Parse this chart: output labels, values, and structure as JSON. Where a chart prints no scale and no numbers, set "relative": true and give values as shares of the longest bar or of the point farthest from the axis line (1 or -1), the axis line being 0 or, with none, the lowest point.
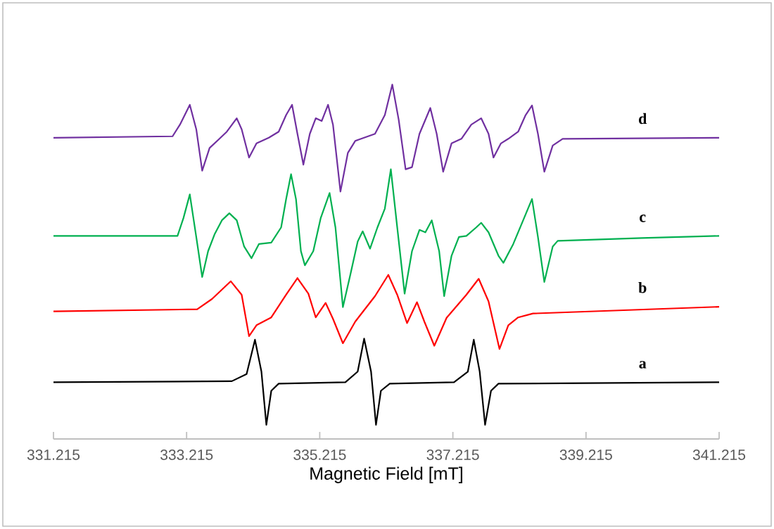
{
  "chart_data": {
    "type": "line",
    "relative": true,
    "xlabel": "Magnetic Field [mT]",
    "xlim": [
      331.215,
      341.215
    ],
    "xticks": [
      331.215,
      333.215,
      335.215,
      337.215,
      339.215,
      341.215
    ],
    "tick_labels": "x",
    "series": [
      {
        "name": "d",
        "color": "#7030a0",
        "x": [
          331.215,
          333.004,
          333.115,
          333.263,
          333.36,
          333.449,
          333.56,
          333.708,
          333.819,
          333.968,
          334.042,
          334.153,
          334.265,
          334.45,
          334.598,
          334.71,
          334.799,
          334.88,
          334.969,
          335.066,
          335.155,
          335.244,
          335.34,
          335.414,
          335.526,
          335.637,
          335.748,
          336.045,
          336.193,
          336.305,
          336.401,
          336.505,
          336.601,
          336.713,
          336.876,
          336.972,
          337.069,
          337.195,
          337.343,
          337.492,
          337.64,
          337.751,
          337.825,
          337.937,
          338.048,
          338.196,
          338.308,
          338.404,
          338.493,
          338.589,
          338.715,
          338.864,
          341.215
        ],
        "values": [
          0.85,
          0.854,
          0.887,
          0.943,
          0.874,
          0.757,
          0.821,
          0.847,
          0.867,
          0.905,
          0.874,
          0.794,
          0.834,
          0.85,
          0.867,
          0.914,
          0.943,
          0.861,
          0.774,
          0.861,
          0.905,
          0.897,
          0.943,
          0.887,
          0.698,
          0.807,
          0.841,
          0.861,
          0.914,
          1.0,
          0.901,
          0.761,
          0.767,
          0.861,
          0.934,
          0.861,
          0.754,
          0.834,
          0.847,
          0.887,
          0.905,
          0.861,
          0.794,
          0.834,
          0.847,
          0.867,
          0.914,
          0.941,
          0.861,
          0.754,
          0.828,
          0.847,
          0.85
        ]
      },
      {
        "name": "c",
        "color": "#00b050",
        "x": [
          331.215,
          333.078,
          333.167,
          333.263,
          333.36,
          333.449,
          333.538,
          333.634,
          333.745,
          333.857,
          333.968,
          334.079,
          334.19,
          334.301,
          334.487,
          334.635,
          334.71,
          334.784,
          334.858,
          334.932,
          334.992,
          335.118,
          335.229,
          335.363,
          335.451,
          335.563,
          335.674,
          335.785,
          335.86,
          335.971,
          336.082,
          336.193,
          336.283,
          336.379,
          336.49,
          336.601,
          336.713,
          336.802,
          336.898,
          337.009,
          337.084,
          337.195,
          337.306,
          337.418,
          337.566,
          337.64,
          337.751,
          337.9,
          337.974,
          338.122,
          338.271,
          338.404,
          338.493,
          338.589,
          338.715,
          338.79,
          340.051,
          341.215
        ],
        "values": [
          0.573,
          0.573,
          0.623,
          0.69,
          0.57,
          0.457,
          0.53,
          0.577,
          0.617,
          0.637,
          0.617,
          0.543,
          0.51,
          0.55,
          0.554,
          0.597,
          0.677,
          0.747,
          0.677,
          0.53,
          0.49,
          0.53,
          0.623,
          0.694,
          0.597,
          0.372,
          0.463,
          0.557,
          0.586,
          0.537,
          0.597,
          0.65,
          0.761,
          0.597,
          0.41,
          0.53,
          0.59,
          0.583,
          0.617,
          0.53,
          0.403,
          0.517,
          0.57,
          0.573,
          0.597,
          0.61,
          0.583,
          0.517,
          0.497,
          0.55,
          0.617,
          0.677,
          0.57,
          0.443,
          0.543,
          0.559,
          0.567,
          0.573
        ]
      },
      {
        "name": "b",
        "color": "#ff0000",
        "x": [
          331.215,
          333.374,
          333.597,
          333.879,
          334.042,
          334.153,
          334.265,
          334.487,
          334.71,
          334.88,
          335.044,
          335.155,
          335.303,
          335.414,
          335.563,
          335.748,
          336.045,
          336.245,
          336.379,
          336.527,
          336.676,
          336.787,
          336.936,
          337.121,
          337.418,
          337.603,
          337.751,
          337.915,
          338.048,
          338.196,
          338.419,
          341.215
        ],
        "values": [
          0.36,
          0.366,
          0.395,
          0.445,
          0.407,
          0.29,
          0.321,
          0.343,
          0.407,
          0.454,
          0.41,
          0.343,
          0.384,
          0.339,
          0.27,
          0.331,
          0.403,
          0.463,
          0.407,
          0.327,
          0.386,
          0.331,
          0.263,
          0.342,
          0.407,
          0.452,
          0.388,
          0.254,
          0.321,
          0.343,
          0.354,
          0.373
        ]
      },
      {
        "name": "a",
        "color": "#000000",
        "x": [
          331.215,
          333.894,
          334.116,
          334.242,
          334.339,
          334.413,
          334.487,
          334.598,
          335.6,
          335.785,
          335.882,
          335.986,
          336.06,
          336.134,
          336.267,
          337.232,
          337.44,
          337.529,
          337.618,
          337.699,
          337.788,
          337.9,
          341.215
        ],
        "values": [
          0.16,
          0.163,
          0.183,
          0.28,
          0.19,
          0.04,
          0.136,
          0.156,
          0.16,
          0.19,
          0.283,
          0.19,
          0.04,
          0.136,
          0.156,
          0.16,
          0.19,
          0.28,
          0.19,
          0.04,
          0.136,
          0.156,
          0.16
        ]
      }
    ]
  }
}
